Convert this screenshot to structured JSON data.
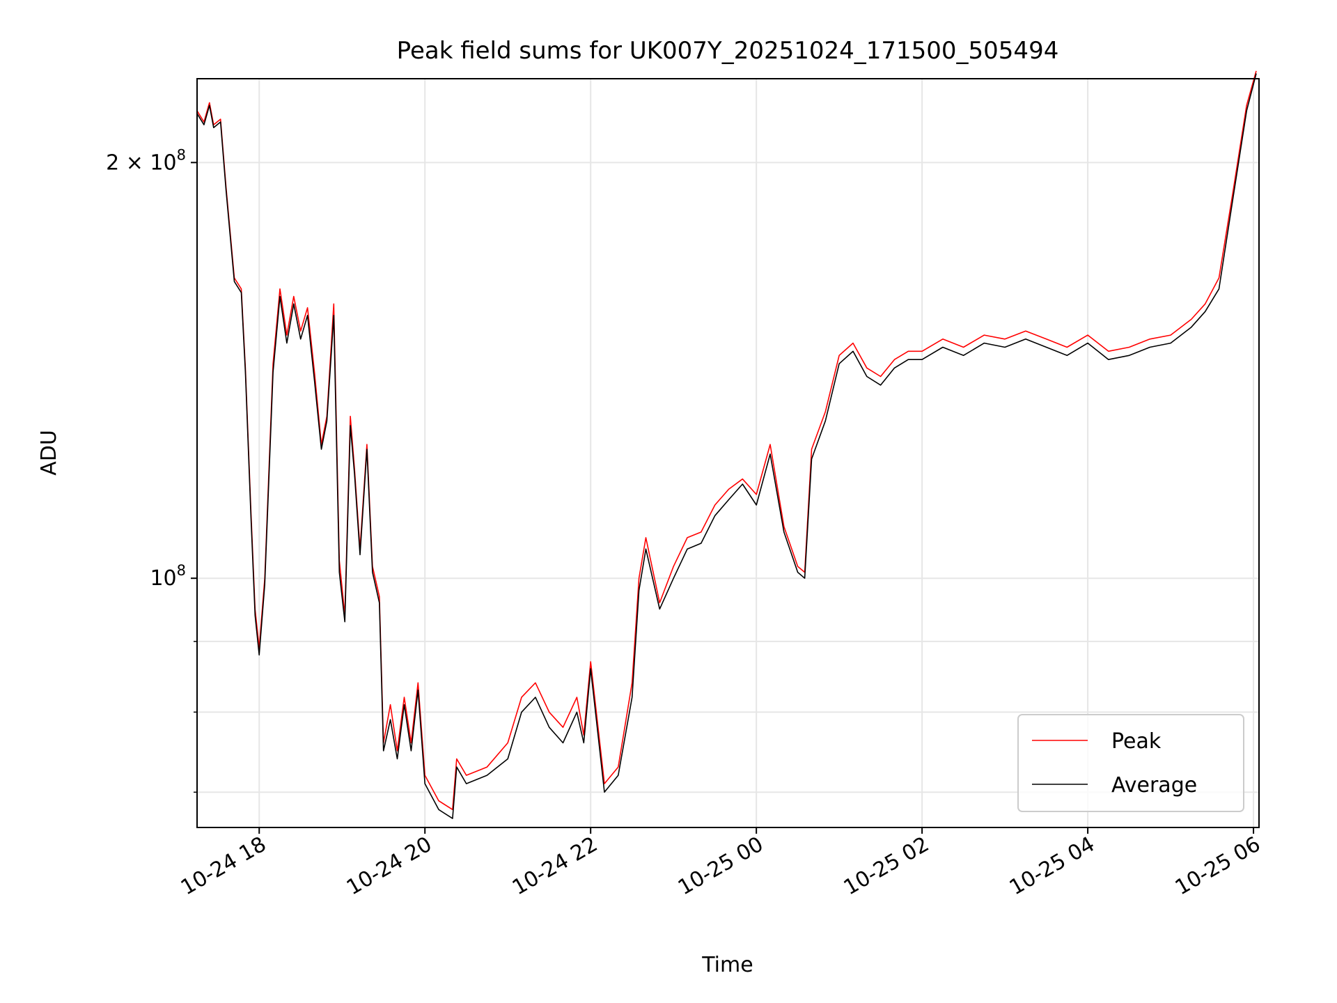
{
  "chart_data": {
    "type": "line",
    "title": "Peak field sums for UK007Y_20251024_171500_505494",
    "xlabel": "Time",
    "ylabel": "ADU",
    "yscale": "log",
    "xlim": [
      "2025-10-24T17:15",
      "2025-10-25T06:04"
    ],
    "ylim": [
      66000000,
      230000000
    ],
    "x_ticks": [
      {
        "value": "2025-10-24T18:00",
        "label": "10-24 18"
      },
      {
        "value": "2025-10-24T20:00",
        "label": "10-24 20"
      },
      {
        "value": "2025-10-24T22:00",
        "label": "10-24 22"
      },
      {
        "value": "2025-10-25T00:00",
        "label": "10-25 00"
      },
      {
        "value": "2025-10-25T02:00",
        "label": "10-25 02"
      },
      {
        "value": "2025-10-25T04:00",
        "label": "10-25 04"
      },
      {
        "value": "2025-10-25T06:00",
        "label": "10-25 06"
      }
    ],
    "y_ticks": [
      {
        "value": 100000000,
        "base": "10",
        "exp": "8"
      },
      {
        "value": 200000000,
        "base": "2 × 10",
        "exp": "8"
      }
    ],
    "y_minor_ticks": [
      70000000,
      80000000,
      90000000
    ],
    "grid": true,
    "legend_position": "lower-right",
    "x": [
      "2025-10-24T17:15",
      "2025-10-24T17:20",
      "2025-10-24T17:24",
      "2025-10-24T17:27",
      "2025-10-24T17:32",
      "2025-10-24T17:36",
      "2025-10-24T17:42",
      "2025-10-24T17:47",
      "2025-10-24T17:50",
      "2025-10-24T17:54",
      "2025-10-24T17:57",
      "2025-10-24T18:00",
      "2025-10-24T18:04",
      "2025-10-24T18:10",
      "2025-10-24T18:15",
      "2025-10-24T18:20",
      "2025-10-24T18:25",
      "2025-10-24T18:30",
      "2025-10-24T18:35",
      "2025-10-24T18:40",
      "2025-10-24T18:45",
      "2025-10-24T18:49",
      "2025-10-24T18:54",
      "2025-10-24T18:58",
      "2025-10-24T19:02",
      "2025-10-24T19:06",
      "2025-10-24T19:09",
      "2025-10-24T19:13",
      "2025-10-24T19:18",
      "2025-10-24T19:22",
      "2025-10-24T19:27",
      "2025-10-24T19:30",
      "2025-10-24T19:35",
      "2025-10-24T19:40",
      "2025-10-24T19:45",
      "2025-10-24T19:50",
      "2025-10-24T19:55",
      "2025-10-24T20:00",
      "2025-10-24T20:10",
      "2025-10-24T20:20",
      "2025-10-24T20:23",
      "2025-10-24T20:30",
      "2025-10-24T20:45",
      "2025-10-24T21:00",
      "2025-10-24T21:10",
      "2025-10-24T21:20",
      "2025-10-24T21:30",
      "2025-10-24T21:40",
      "2025-10-24T21:50",
      "2025-10-24T21:55",
      "2025-10-24T22:00",
      "2025-10-24T22:10",
      "2025-10-24T22:20",
      "2025-10-24T22:30",
      "2025-10-24T22:35",
      "2025-10-24T22:40",
      "2025-10-24T22:50",
      "2025-10-24T23:00",
      "2025-10-24T23:10",
      "2025-10-24T23:20",
      "2025-10-24T23:30",
      "2025-10-24T23:40",
      "2025-10-24T23:50",
      "2025-10-25T00:00",
      "2025-10-25T00:10",
      "2025-10-25T00:20",
      "2025-10-25T00:30",
      "2025-10-25T00:35",
      "2025-10-25T00:40",
      "2025-10-25T00:50",
      "2025-10-25T01:00",
      "2025-10-25T01:10",
      "2025-10-25T01:20",
      "2025-10-25T01:30",
      "2025-10-25T01:40",
      "2025-10-25T01:50",
      "2025-10-25T02:00",
      "2025-10-25T02:15",
      "2025-10-25T02:30",
      "2025-10-25T02:45",
      "2025-10-25T03:00",
      "2025-10-25T03:15",
      "2025-10-25T03:30",
      "2025-10-25T03:45",
      "2025-10-25T04:00",
      "2025-10-25T04:15",
      "2025-10-25T04:30",
      "2025-10-25T04:45",
      "2025-10-25T05:00",
      "2025-10-25T05:15",
      "2025-10-25T05:25",
      "2025-10-25T05:35",
      "2025-10-25T05:45",
      "2025-10-25T05:55",
      "2025-10-25T06:02"
    ],
    "series": [
      {
        "name": "Peak",
        "color": "#ff0000",
        "values": [
          218000000,
          214000000,
          221000000,
          213000000,
          215000000,
          192000000,
          165000000,
          162000000,
          142000000,
          112000000,
          95000000,
          89000000,
          100000000,
          143000000,
          162000000,
          150000000,
          160000000,
          151000000,
          157000000,
          141000000,
          125000000,
          131000000,
          158000000,
          103000000,
          94000000,
          131000000,
          120000000,
          105000000,
          125000000,
          102000000,
          97000000,
          76000000,
          81000000,
          75000000,
          82000000,
          76000000,
          84000000,
          72000000,
          69000000,
          68000000,
          74000000,
          72000000,
          73000000,
          76000000,
          82000000,
          84000000,
          80000000,
          78000000,
          82000000,
          77000000,
          87000000,
          71000000,
          73000000,
          84000000,
          100000000,
          107000000,
          96000000,
          102000000,
          107000000,
          108000000,
          113000000,
          116000000,
          118000000,
          115000000,
          125000000,
          109000000,
          102000000,
          101000000,
          124000000,
          132000000,
          145000000,
          148000000,
          142000000,
          140000000,
          144000000,
          146000000,
          146000000,
          149000000,
          147000000,
          150000000,
          149000000,
          151000000,
          149000000,
          147000000,
          150000000,
          146000000,
          147000000,
          149000000,
          150000000,
          154000000,
          158000000,
          165000000,
          190000000,
          220000000,
          233000000
        ]
      },
      {
        "name": "Average",
        "color": "#000000",
        "values": [
          217000000,
          213000000,
          220000000,
          212000000,
          214000000,
          191000000,
          164000000,
          161000000,
          141000000,
          111000000,
          94000000,
          88000000,
          99000000,
          141000000,
          160000000,
          148000000,
          158000000,
          149000000,
          155000000,
          139000000,
          124000000,
          130000000,
          155000000,
          101000000,
          93000000,
          129000000,
          119000000,
          104000000,
          124000000,
          101000000,
          96000000,
          75000000,
          79000000,
          74000000,
          81000000,
          75000000,
          83000000,
          71000000,
          68000000,
          67000000,
          73000000,
          71000000,
          72000000,
          74000000,
          80000000,
          82000000,
          78000000,
          76000000,
          80000000,
          76000000,
          86000000,
          70000000,
          72000000,
          82000000,
          98000000,
          105000000,
          95000000,
          100000000,
          105000000,
          106000000,
          111000000,
          114000000,
          117000000,
          113000000,
          123000000,
          108000000,
          101000000,
          100000000,
          122000000,
          130000000,
          143000000,
          146000000,
          140000000,
          138000000,
          142000000,
          144000000,
          144000000,
          147000000,
          145000000,
          148000000,
          147000000,
          149000000,
          147000000,
          145000000,
          148000000,
          144000000,
          145000000,
          147000000,
          148000000,
          152000000,
          156000000,
          162000000,
          188000000,
          218000000,
          232000000
        ]
      }
    ]
  }
}
